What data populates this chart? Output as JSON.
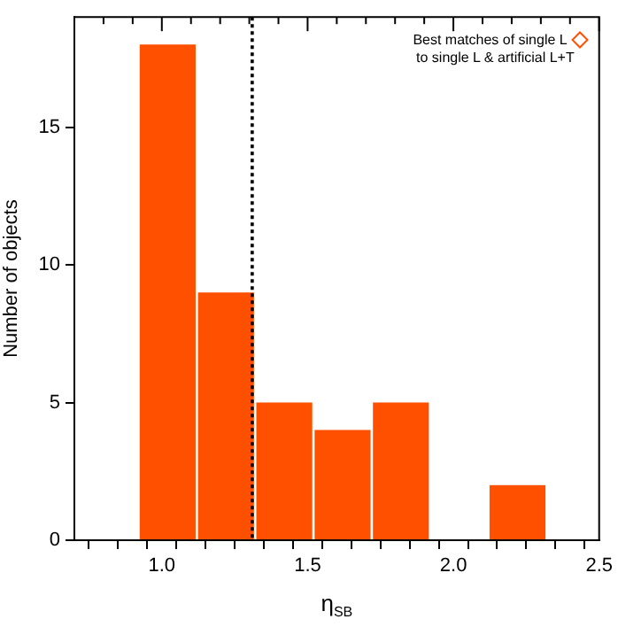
{
  "chart_data": {
    "type": "histogram",
    "xlabel": "η$_{SB}$",
    "ylabel": "Number of objects",
    "bins": [
      0.92,
      1.12,
      1.32,
      1.52,
      1.72,
      1.92,
      2.12,
      2.32
    ],
    "values": [
      18,
      9,
      5,
      4,
      5,
      0,
      2
    ],
    "color": "#ff5000",
    "xlim": [
      0.7,
      2.5
    ],
    "xticks": [
      {
        "value": 0.8,
        "label": null
      },
      {
        "value": 0.9,
        "label": null
      },
      {
        "value": 1,
        "label": "1.0"
      },
      {
        "value": 1.1,
        "label": null
      },
      {
        "value": 1.2,
        "label": null
      },
      {
        "value": 1.3,
        "label": null
      },
      {
        "value": 1.4,
        "label": null
      },
      {
        "value": 1.5,
        "label": "1.5"
      },
      {
        "value": 1.6,
        "label": null
      },
      {
        "value": 1.7,
        "label": null
      },
      {
        "value": 1.8,
        "label": null
      },
      {
        "value": 1.9,
        "label": null
      },
      {
        "value": 2,
        "label": "2.0"
      },
      {
        "value": 2.1,
        "label": null
      },
      {
        "value": 2.2,
        "label": null
      },
      {
        "value": 2.3,
        "label": null
      },
      {
        "value": 2.4,
        "label": null
      },
      {
        "value": 2.5,
        "label": "2.5"
      }
    ],
    "ylim": [
      0,
      19
    ],
    "yticks": [
      0,
      5,
      10,
      15
    ],
    "ref_lines": [
      {
        "axis": "x",
        "value": 1.31,
        "line_style": "dotted",
        "color": "#000000"
      }
    ],
    "annotations": [
      "Best matches of single L",
      "to single L & artificial L+T"
    ],
    "grid": false
  }
}
